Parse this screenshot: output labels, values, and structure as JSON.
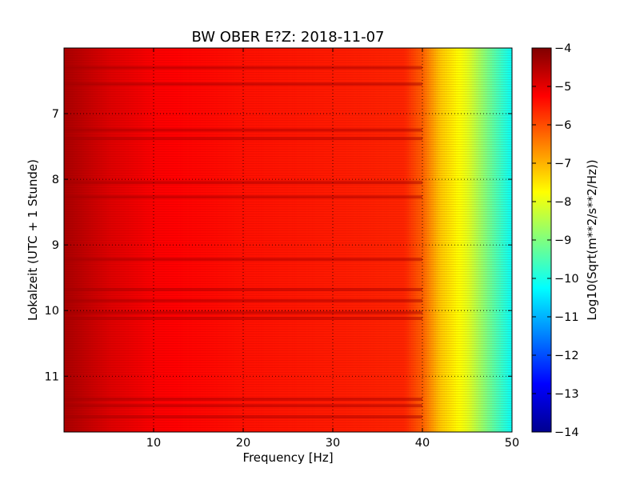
{
  "chart_data": {
    "type": "heatmap",
    "title": "BW OBER E?Z: 2018-11-07",
    "xlabel": "Frequency [Hz]",
    "ylabel": "Lokalzeit (UTC + 1 Stunde)",
    "xlim": [
      0,
      50
    ],
    "ylim": [
      6.0,
      11.85
    ],
    "y_direction": "downward",
    "xticks": [
      10,
      20,
      30,
      40,
      50
    ],
    "yticks": [
      7,
      8,
      9,
      10,
      11
    ],
    "grid": true,
    "colorbar": {
      "label": "Log10(Sqrt(m**2/s**2/Hz))",
      "range": [
        -14,
        -4
      ],
      "ticks": [
        -4,
        -5,
        -6,
        -7,
        -8,
        -9,
        -10,
        -11,
        -12,
        -13,
        -14
      ],
      "colormap": "jet"
    },
    "spectrum_profile": [
      {
        "frequency": 0,
        "value": -4.4
      },
      {
        "frequency": 5,
        "value": -4.9
      },
      {
        "frequency": 10,
        "value": -5.2
      },
      {
        "frequency": 20,
        "value": -5.4
      },
      {
        "frequency": 30,
        "value": -5.5
      },
      {
        "frequency": 38,
        "value": -5.6
      },
      {
        "frequency": 40,
        "value": -6.2
      },
      {
        "frequency": 42,
        "value": -7.2
      },
      {
        "frequency": 45,
        "value": -8.0
      },
      {
        "frequency": 48,
        "value": -9.4
      },
      {
        "frequency": 50,
        "value": -10.2
      }
    ],
    "dark_bands_hours": [
      6.3,
      6.55,
      7.25,
      7.38,
      8.05,
      8.27,
      9.22,
      9.68,
      9.85,
      10.03,
      10.12,
      11.35,
      11.45,
      11.62
    ]
  }
}
